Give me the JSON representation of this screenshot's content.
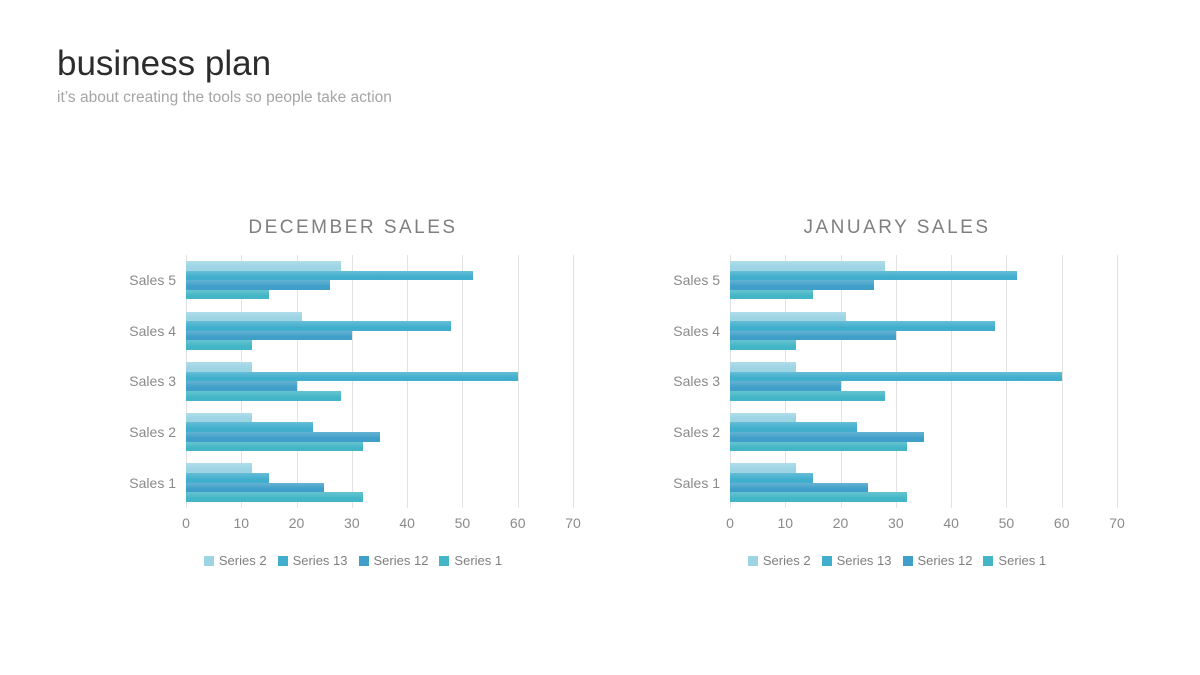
{
  "slide": {
    "title": "business plan",
    "subtitle": "it’s about creating the tools so people take action"
  },
  "colors": {
    "series_2": "#9cd4e4",
    "series_13": "#41aecd",
    "series_12": "#3f9fc8",
    "series_1": "#42b5c6",
    "gridline": "#e2e2e2",
    "chart_text": "#8a8a8a",
    "legend_text": "#7f7f7f",
    "title_text": "#2c2c2c",
    "subtitle_text": "#a5a5a5",
    "chart_title_text": "#7f7f7f"
  },
  "chart_data": [
    {
      "type": "bar",
      "orientation": "horizontal",
      "title": "DECEMBER SALES",
      "categories": [
        "Sales 5",
        "Sales 4",
        "Sales 3",
        "Sales 2",
        "Sales 1"
      ],
      "series": [
        {
          "name": "Series 2",
          "color": "#9cd4e4",
          "values": [
            28,
            21,
            12,
            12,
            12
          ]
        },
        {
          "name": "Series 13",
          "color": "#41aecd",
          "values": [
            52,
            48,
            60,
            23,
            15
          ]
        },
        {
          "name": "Series 12",
          "color": "#3f9fc8",
          "values": [
            26,
            30,
            20,
            35,
            25
          ]
        },
        {
          "name": "Series 1",
          "color": "#42b5c6",
          "values": [
            15,
            12,
            28,
            32,
            32
          ]
        }
      ],
      "xlim": [
        0,
        70
      ],
      "xticks": [
        0,
        10,
        20,
        30,
        40,
        50,
        60,
        70
      ],
      "grid": "vertical",
      "legend_position": "bottom"
    },
    {
      "type": "bar",
      "orientation": "horizontal",
      "title": "JANUARY SALES",
      "categories": [
        "Sales 5",
        "Sales 4",
        "Sales 3",
        "Sales 2",
        "Sales 1"
      ],
      "series": [
        {
          "name": "Series 2",
          "color": "#9cd4e4",
          "values": [
            28,
            21,
            12,
            12,
            12
          ]
        },
        {
          "name": "Series 13",
          "color": "#41aecd",
          "values": [
            52,
            48,
            60,
            23,
            15
          ]
        },
        {
          "name": "Series 12",
          "color": "#3f9fc8",
          "values": [
            26,
            30,
            20,
            35,
            25
          ]
        },
        {
          "name": "Series 1",
          "color": "#42b5c6",
          "values": [
            15,
            12,
            28,
            32,
            32
          ]
        }
      ],
      "xlim": [
        0,
        70
      ],
      "xticks": [
        0,
        10,
        20,
        30,
        40,
        50,
        60,
        70
      ],
      "grid": "vertical",
      "legend_position": "bottom"
    }
  ]
}
